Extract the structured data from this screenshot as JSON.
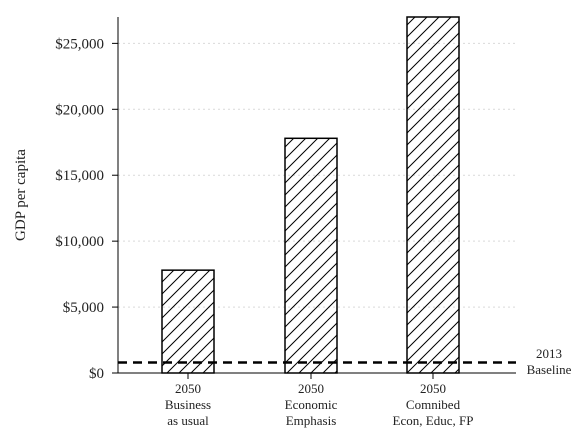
{
  "chart_data": {
    "type": "bar",
    "categories": [
      [
        "2050",
        "Business",
        "as usual"
      ],
      [
        "2050",
        "Economic",
        "Emphasis"
      ],
      [
        "2050",
        "Comnibed",
        "Econ, Educ, FP"
      ]
    ],
    "values": [
      7800,
      17800,
      27000
    ],
    "ylabel": "GDP per capita",
    "ylim": [
      0,
      27000
    ],
    "yticks": [
      0,
      5000,
      10000,
      15000,
      20000,
      25000
    ],
    "ytick_labels": [
      "$0",
      "$5,000",
      "$10,000",
      "$15,000",
      "$20,000",
      "$25,000"
    ],
    "grid": "horizontal dotted",
    "bar_fill": "diagonal hatch",
    "reference_line": {
      "value": 800,
      "style": "dashed",
      "label": [
        "2013",
        "Baseline"
      ]
    },
    "colors": {
      "bar_stroke": "#000000",
      "hatch": "#000000",
      "grid": "#d9d9d9",
      "text": "#222222"
    }
  }
}
